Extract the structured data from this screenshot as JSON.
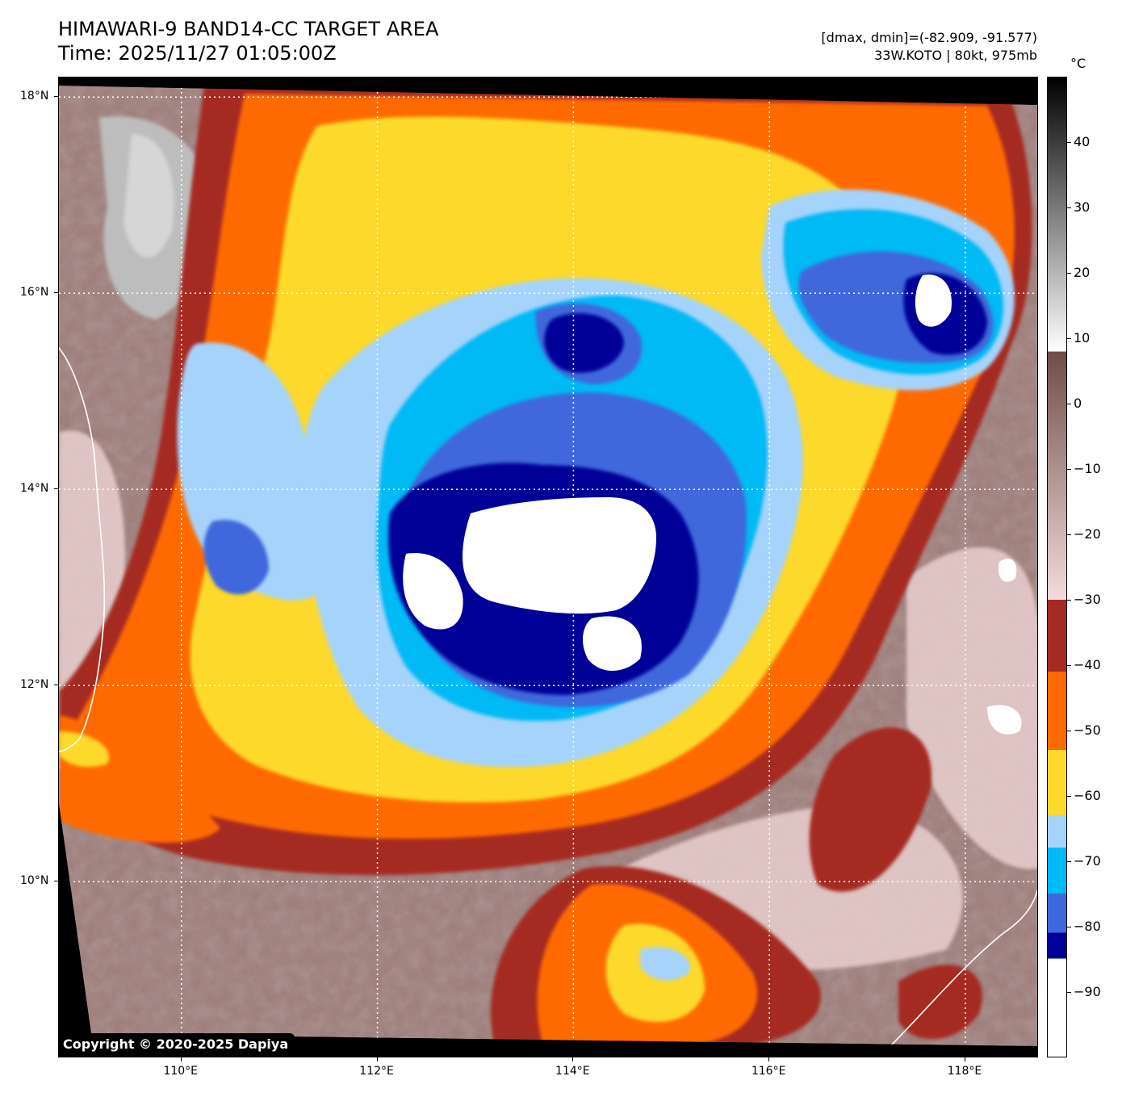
{
  "header": {
    "title_line1": "HIMAWARI-9 BAND14-CC TARGET AREA",
    "title_line2": "Time: 2025/11/27 01:05:00Z",
    "info_line1": "[dmax, dmin]=(-82.909, -91.577)",
    "info_line2": "33W.KOTO | 80kt, 975mb"
  },
  "map": {
    "lat_labels": [
      "18°N",
      "16°N",
      "14°N",
      "12°N",
      "10°N"
    ],
    "lon_labels": [
      "110°E",
      "112°E",
      "114°E",
      "116°E",
      "118°E"
    ],
    "latitudes": [
      18,
      16,
      14,
      12,
      10
    ],
    "longitudes": [
      110,
      112,
      114,
      116,
      118
    ],
    "lat_range": [
      8.2,
      18.2
    ],
    "lon_range": [
      108.75,
      118.75
    ],
    "gridlines": "dotted white",
    "copyright": "Copyright © 2020-2025 Dapiya"
  },
  "colorbar": {
    "unit": "°C",
    "tick_labels": [
      "40",
      "30",
      "20",
      "10",
      "0",
      "−10",
      "−20",
      "−30",
      "−40",
      "−50",
      "−60",
      "−70",
      "−80",
      "−90"
    ],
    "tick_values": [
      40,
      30,
      20,
      10,
      0,
      -10,
      -20,
      -30,
      -40,
      -50,
      -60,
      -70,
      -80,
      -90
    ],
    "range": [
      -100,
      50
    ],
    "bands": [
      {
        "from": 8,
        "to": 50,
        "color_top": "#000000",
        "color_bottom": "#ffffff"
      },
      {
        "from": -30,
        "to": 8,
        "color_top": "#6e4d49",
        "color_bottom": "#f3dcdc"
      },
      {
        "from": -41,
        "to": -30,
        "color": "#a52a22"
      },
      {
        "from": -53,
        "to": -41,
        "color": "#ff6a00"
      },
      {
        "from": -63,
        "to": -53,
        "color": "#fcd92c"
      },
      {
        "from": -68,
        "to": -63,
        "color": "#a6d3fb"
      },
      {
        "from": -75,
        "to": -68,
        "color": "#00baf5"
      },
      {
        "from": -81,
        "to": -75,
        "color": "#3f67dc"
      },
      {
        "from": -85,
        "to": -81,
        "color": "#000097"
      },
      {
        "from": -100,
        "to": -85,
        "color": "#ffffff"
      }
    ]
  }
}
